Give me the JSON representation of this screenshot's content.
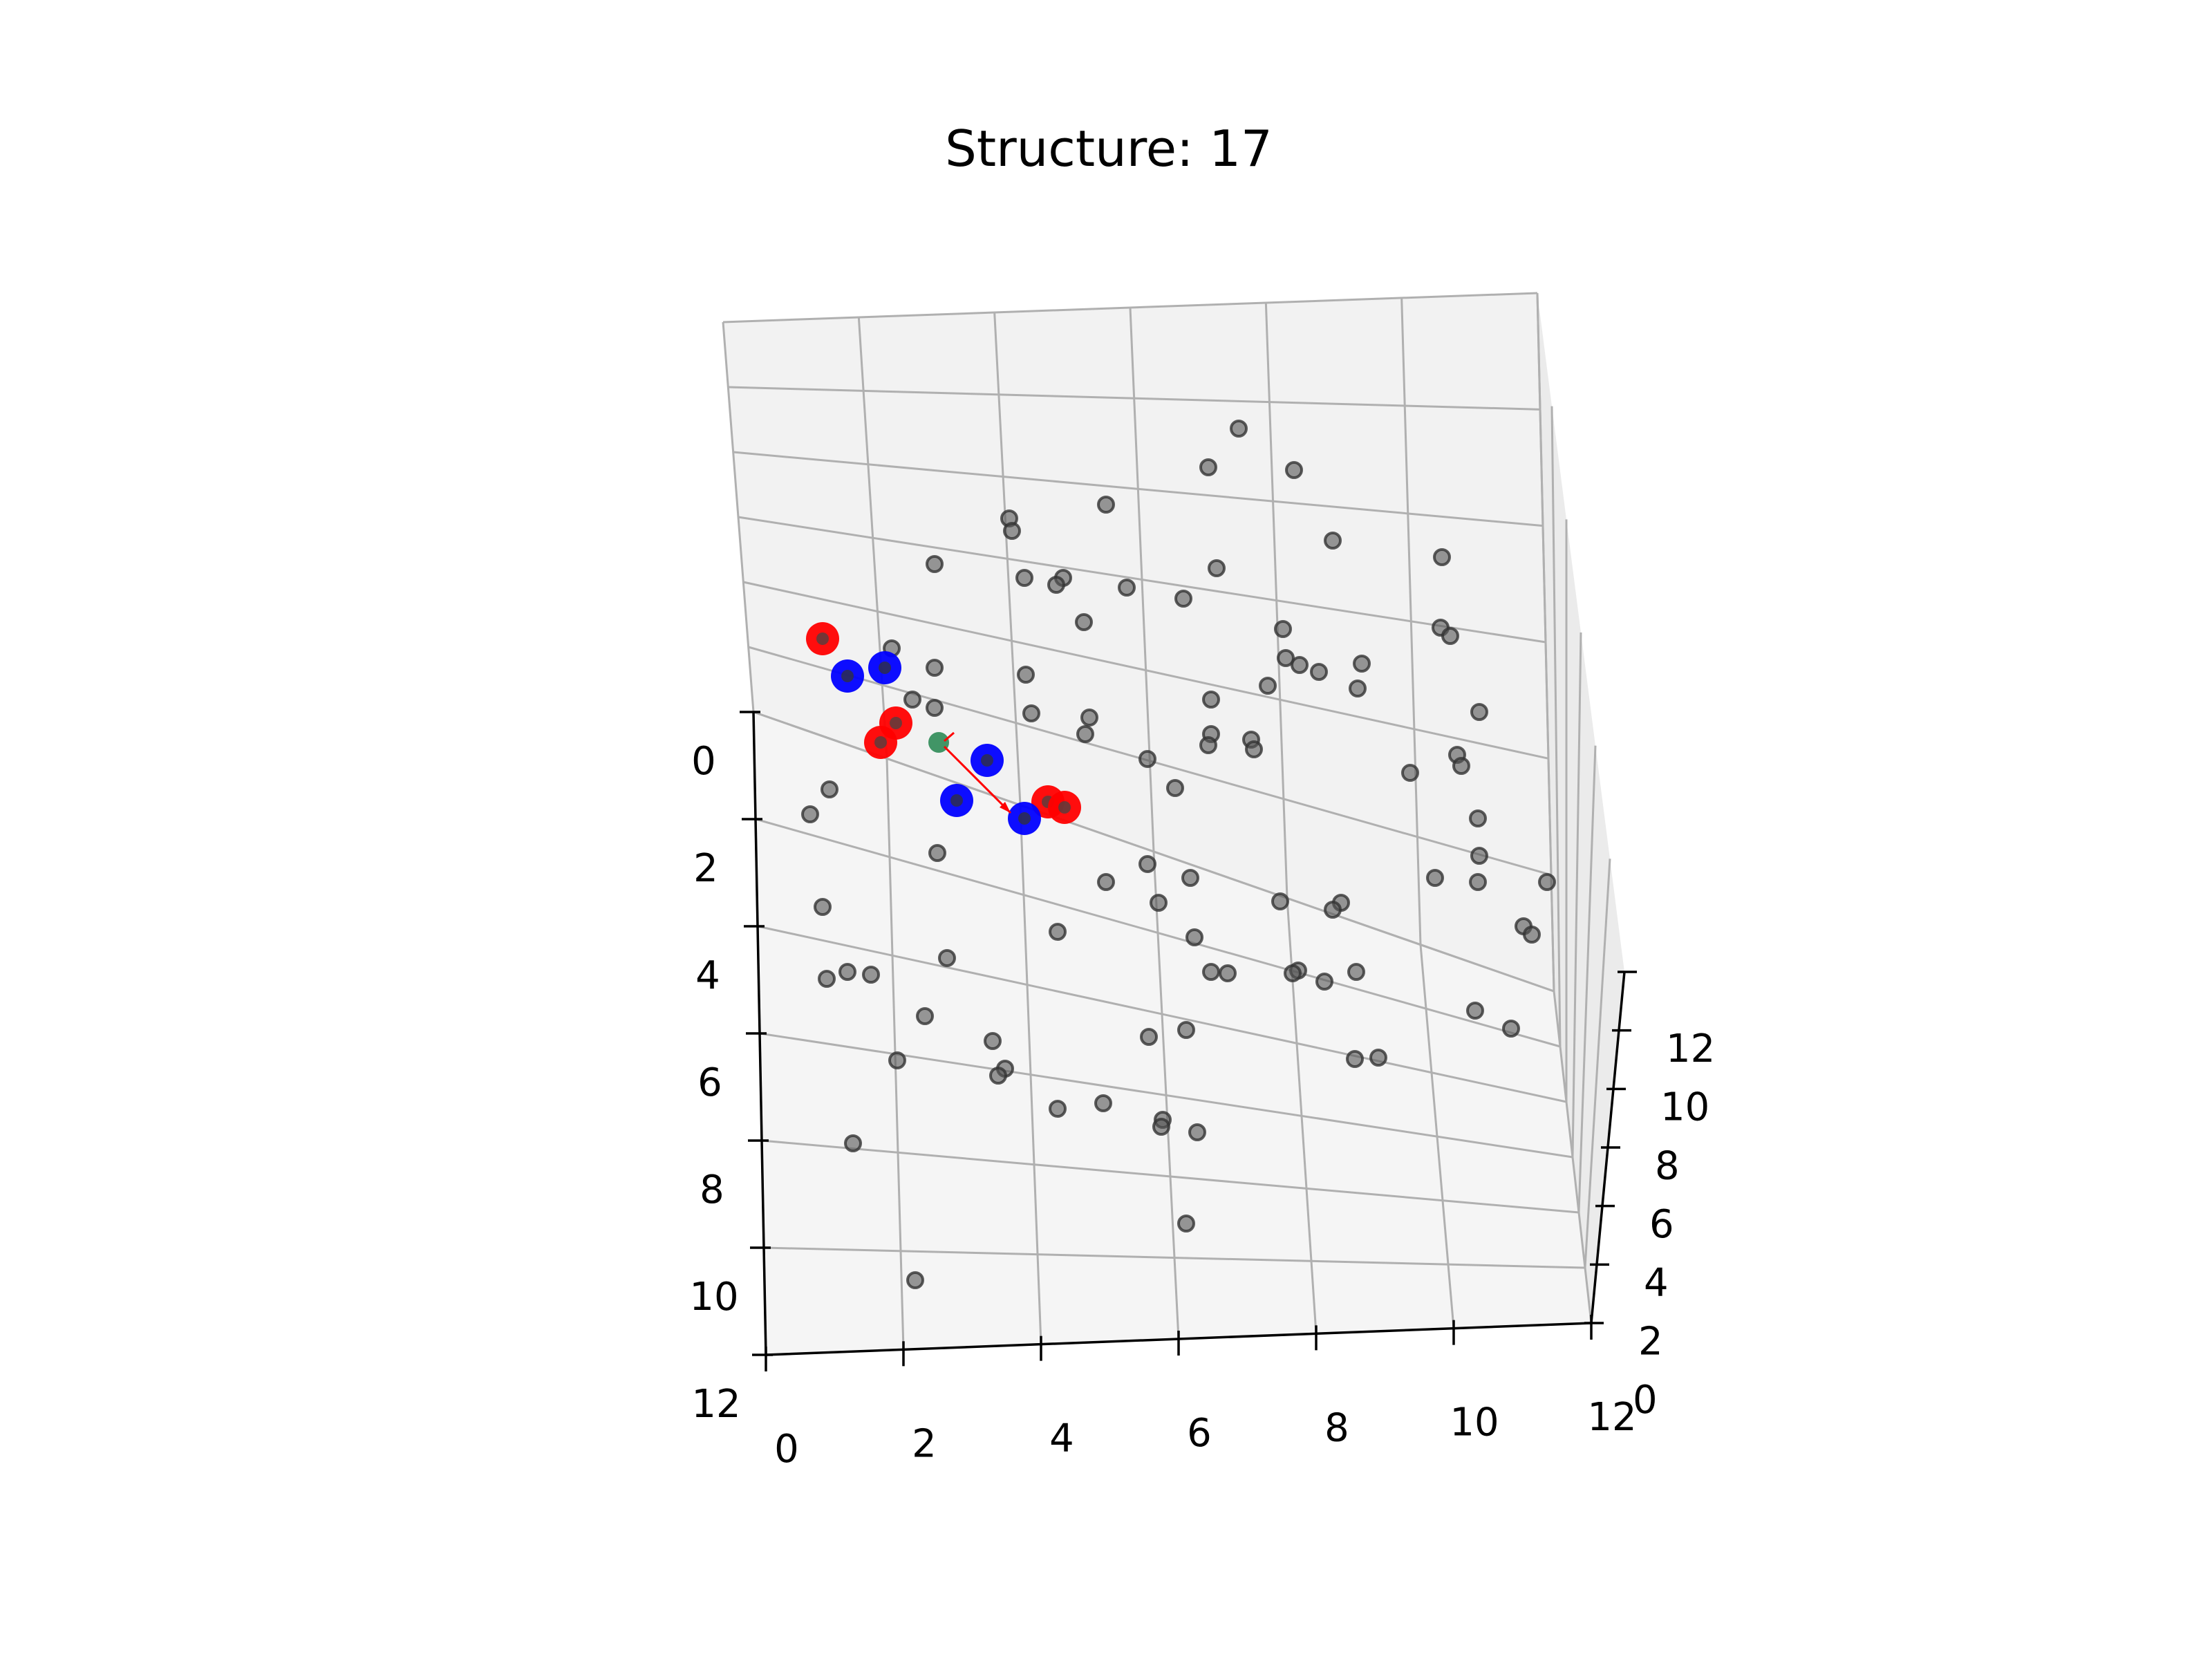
{
  "chart_data": {
    "type": "scatter",
    "title": "Structure: 17",
    "xlabel": "",
    "ylabel": "",
    "zlabel": "",
    "xlim": [
      0,
      12
    ],
    "ylim": [
      0,
      12
    ],
    "zlim": [
      0,
      12
    ],
    "x_ticks": [
      "0",
      "2",
      "4",
      "6",
      "8",
      "10",
      "12"
    ],
    "y_ticks": [
      "0",
      "2",
      "4",
      "6",
      "8",
      "10",
      "12"
    ],
    "z_ticks": [
      "0",
      "2",
      "4",
      "6",
      "8",
      "10",
      "12"
    ],
    "grid": true,
    "projection": "3d",
    "colors": {
      "points": "#555555",
      "red": "#ff0000",
      "blue": "#0000ff",
      "center": "#2e8b57",
      "arrow": "#ff0000",
      "pane": "#f2f2f2",
      "grid": "#b0b0b0"
    }
  }
}
